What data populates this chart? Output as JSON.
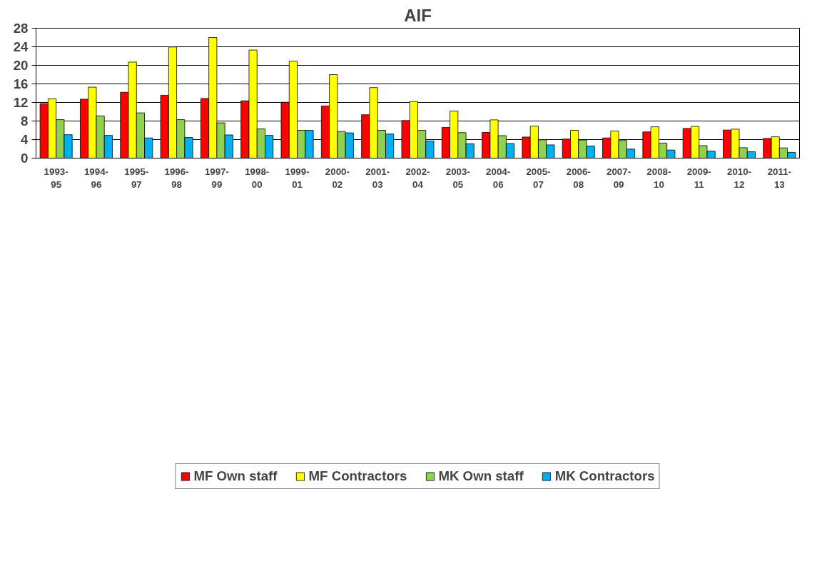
{
  "chart_data": {
    "type": "bar",
    "title": "AIF",
    "categories": [
      "1993-95",
      "1994-96",
      "1995-97",
      "1996-98",
      "1997-99",
      "1998-00",
      "1999-01",
      "2000-02",
      "2001-03",
      "2002-04",
      "2003-05",
      "2004-06",
      "2005-07",
      "2006-08",
      "2007-09",
      "2008-10",
      "2009-11",
      "2010-12",
      "2011-13"
    ],
    "series": [
      {
        "name": "MF Own staff",
        "color": "#ff0000",
        "values": [
          11.75,
          12.7,
          14.2,
          13.55,
          12.85,
          12.35,
          12.05,
          11.25,
          9.35,
          8.1,
          6.6,
          5.55,
          4.55,
          4.1,
          4.35,
          5.65,
          6.4,
          6.05,
          4.25
        ]
      },
      {
        "name": "MF Contractors",
        "color": "#ffff00",
        "values": [
          12.8,
          15.3,
          20.7,
          23.95,
          26.0,
          23.3,
          20.9,
          18.0,
          15.2,
          12.2,
          10.15,
          8.25,
          6.9,
          6.0,
          5.85,
          6.75,
          6.85,
          6.25,
          4.6
        ]
      },
      {
        "name": "MK Own staff",
        "color": "#92d050",
        "values": [
          8.3,
          9.1,
          9.75,
          8.3,
          7.6,
          6.3,
          6.0,
          5.75,
          6.0,
          6.0,
          5.5,
          4.85,
          3.95,
          3.9,
          3.8,
          3.25,
          2.7,
          2.25,
          2.2
        ]
      },
      {
        "name": "MK Contractors",
        "color": "#00b0f0",
        "values": [
          5.05,
          4.9,
          4.35,
          4.45,
          5.0,
          4.9,
          6.0,
          5.45,
          5.2,
          3.7,
          3.1,
          3.15,
          2.85,
          2.6,
          1.95,
          1.75,
          1.5,
          1.4,
          1.25
        ]
      }
    ],
    "ylim": [
      0,
      28
    ],
    "yticks": [
      0,
      4,
      8,
      12,
      16,
      20,
      24,
      28
    ],
    "grid": "y",
    "legend": "bottom"
  }
}
